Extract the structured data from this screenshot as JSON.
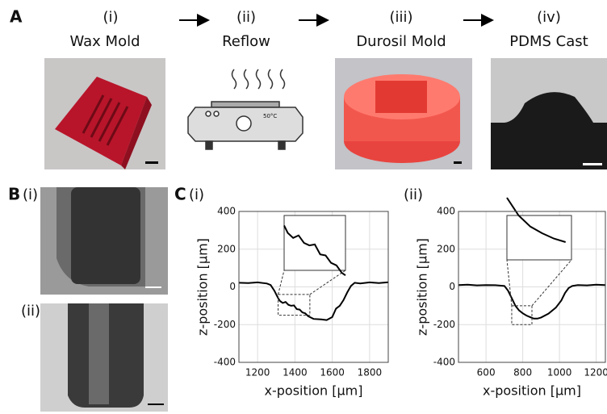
{
  "panel_a": {
    "label": "A",
    "steps": [
      {
        "numeral": "(i)",
        "title": "Wax Mold"
      },
      {
        "numeral": "(ii)",
        "title": "Reflow"
      },
      {
        "numeral": "(iii)",
        "title": "Durosil Mold"
      },
      {
        "numeral": "(iv)",
        "title": "PDMS Cast"
      }
    ],
    "oven_label": "50°C"
  },
  "panel_b": {
    "label": "B",
    "images": [
      "(i)",
      "(ii)"
    ]
  },
  "panel_c": {
    "label": "C"
  },
  "chart_data": [
    {
      "type": "line",
      "label": "(i)",
      "x_label": "x-position [μm]",
      "y_label": "z-position [μm]",
      "xlim": [
        1100,
        1900
      ],
      "xticks": [
        1200,
        1400,
        1600,
        1800
      ],
      "ylim": [
        -400,
        400
      ],
      "yticks": [
        -400,
        -200,
        0,
        200,
        400
      ],
      "grid": true,
      "zoom": {
        "xlim": [
          1310,
          1480
        ],
        "ylim": [
          -150,
          -40
        ]
      },
      "x": [
        1100,
        1150,
        1200,
        1250,
        1270,
        1290,
        1310,
        1320,
        1335,
        1350,
        1365,
        1380,
        1395,
        1410,
        1425,
        1440,
        1455,
        1470,
        1480,
        1500,
        1540,
        1570,
        1600,
        1620,
        1640,
        1660,
        1680,
        1700,
        1720,
        1750,
        1800,
        1850,
        1900
      ],
      "series": [
        {
          "color": "#000000",
          "values": [
            22,
            20,
            24,
            18,
            10,
            -20,
            -60,
            -75,
            -85,
            -80,
            -95,
            -100,
            -98,
            -118,
            -120,
            -135,
            -140,
            -155,
            -160,
            -170,
            -172,
            -176,
            -160,
            -115,
            -100,
            -70,
            -30,
            5,
            22,
            18,
            24,
            20,
            25
          ]
        }
      ]
    },
    {
      "type": "line",
      "label": "(ii)",
      "x_label": "x-position [μm]",
      "y_label": "z-position [μm]",
      "xlim": [
        450,
        1250
      ],
      "xticks": [
        600,
        800,
        1000,
        1200
      ],
      "ylim": [
        -400,
        400
      ],
      "yticks": [
        -400,
        -200,
        0,
        200,
        400
      ],
      "grid": true,
      "zoom": {
        "xlim": [
          740,
          850
        ],
        "ylim": [
          -200,
          -100
        ]
      },
      "x": [
        450,
        500,
        550,
        600,
        650,
        700,
        720,
        740,
        760,
        780,
        800,
        820,
        840,
        860,
        880,
        900,
        940,
        980,
        1010,
        1030,
        1050,
        1070,
        1100,
        1150,
        1200,
        1250
      ],
      "series": [
        {
          "color": "#000000",
          "values": [
            10,
            12,
            8,
            10,
            9,
            5,
            -20,
            -60,
            -100,
            -125,
            -140,
            -152,
            -160,
            -168,
            -168,
            -162,
            -142,
            -110,
            -72,
            -32,
            -6,
            5,
            10,
            8,
            12,
            10
          ]
        }
      ]
    }
  ]
}
